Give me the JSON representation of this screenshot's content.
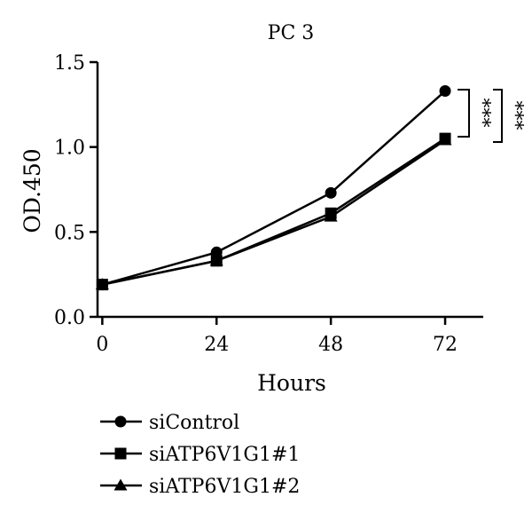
{
  "chart_data": {
    "type": "line",
    "title": "PC 3",
    "xlabel": "Hours",
    "ylabel": "OD.450",
    "x": [
      0,
      24,
      48,
      72
    ],
    "x_ticks": [
      "0",
      "24",
      "48",
      "72"
    ],
    "y_ticks": [
      "0.0",
      "0.5",
      "1.0",
      "1.5"
    ],
    "xlim": [
      -1,
      80
    ],
    "ylim": [
      0,
      1.5
    ],
    "grid": false,
    "legend_position": "bottom-left",
    "series": [
      {
        "name": "siControl",
        "marker": "circle",
        "values": [
          0.19,
          0.38,
          0.73,
          1.33
        ]
      },
      {
        "name": "siATP6V1G1#1",
        "marker": "square",
        "values": [
          0.19,
          0.33,
          0.61,
          1.05
        ]
      },
      {
        "name": "siATP6V1G1#2",
        "marker": "triangle",
        "values": [
          0.19,
          0.33,
          0.59,
          1.04
        ]
      }
    ],
    "annotations": [
      "***",
      "***"
    ],
    "colors": {
      "line": "#000000",
      "background": "#ffffff"
    }
  }
}
